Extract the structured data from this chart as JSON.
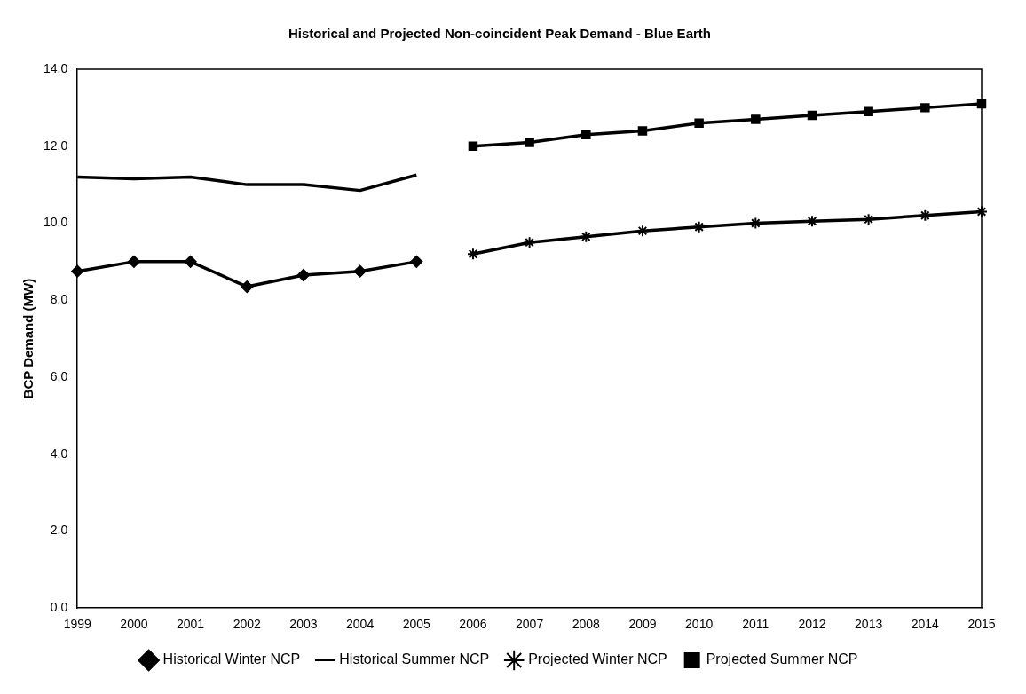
{
  "chart_data": {
    "type": "line",
    "title": "Historical and Projected Non-coincident Peak Demand - Blue Earth",
    "ylabel": "BCP Demand (MW)",
    "categories": [
      "1999",
      "2000",
      "2001",
      "2002",
      "2003",
      "2004",
      "2005",
      "2006",
      "2007",
      "2008",
      "2009",
      "2010",
      "2011",
      "2012",
      "2013",
      "2014",
      "2015"
    ],
    "series": [
      {
        "name": "Historical Winter NCP",
        "color": "#000000",
        "marker": "diamond",
        "values": [
          8.75,
          9.0,
          9.0,
          8.35,
          8.65,
          8.75,
          9.0,
          null,
          null,
          null,
          null,
          null,
          null,
          null,
          null,
          null,
          null
        ]
      },
      {
        "name": "Historical Summer NCP",
        "color": "#000000",
        "marker": "none",
        "values": [
          11.2,
          11.15,
          11.2,
          11.0,
          11.0,
          10.85,
          11.25,
          null,
          null,
          null,
          null,
          null,
          null,
          null,
          null,
          null,
          null
        ]
      },
      {
        "name": "Projected Winter NCP",
        "color": "#000000",
        "marker": "cross",
        "values": [
          null,
          null,
          null,
          null,
          null,
          null,
          null,
          9.2,
          9.5,
          9.65,
          9.8,
          9.9,
          10.0,
          10.05,
          10.1,
          10.2,
          10.3
        ]
      },
      {
        "name": "Projected Summer NCP",
        "color": "#000000",
        "marker": "square",
        "values": [
          null,
          null,
          null,
          null,
          null,
          null,
          null,
          12.0,
          12.1,
          12.3,
          12.4,
          12.6,
          12.7,
          12.8,
          12.9,
          13.0,
          13.1
        ]
      }
    ],
    "ylim": [
      0,
      14
    ],
    "yticks": [
      {
        "value": 0,
        "label": "0.0"
      },
      {
        "value": 2,
        "label": "2.0"
      },
      {
        "value": 4,
        "label": "4.0"
      },
      {
        "value": 6,
        "label": "6.0"
      },
      {
        "value": 8,
        "label": "8.0"
      },
      {
        "value": 10,
        "label": "10.0"
      },
      {
        "value": 12,
        "label": "12.0"
      },
      {
        "value": 14,
        "label": "14.0"
      }
    ],
    "grid": false,
    "legend": "bottom"
  }
}
